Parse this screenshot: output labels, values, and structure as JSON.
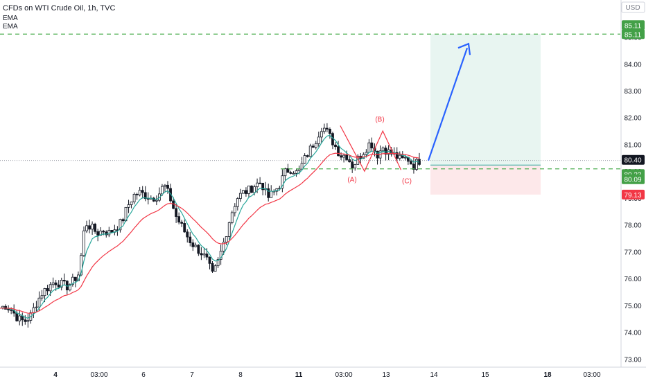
{
  "header": {
    "title": "CFDs on WTI Crude Oil, 1h, TVC",
    "ema1": "EMA",
    "ema2": "EMA",
    "currency": "USD"
  },
  "colors": {
    "up": "#26a69a",
    "down": "#ef5350",
    "candle": "#131722",
    "ema_fast": "#26a69a",
    "ema_slow": "#f23645",
    "target_line": "#4caf50",
    "arrow": "#2962ff",
    "profit_zone": "#e8f5f1",
    "loss_zone": "#fde8ea"
  },
  "chart_data": {
    "type": "candlestick",
    "ylim": [
      72.75,
      86.1
    ],
    "y_ticks": [
      73.0,
      74.0,
      75.0,
      76.0,
      77.0,
      78.0,
      79.0,
      80.0,
      81.0,
      82.0,
      83.0,
      84.0,
      85.0
    ],
    "x_ticks": [
      {
        "label": "4",
        "bold": true
      },
      {
        "label": "03:00",
        "bold": false
      },
      {
        "label": "6",
        "bold": false
      },
      {
        "label": "7",
        "bold": false
      },
      {
        "label": "8",
        "bold": false
      },
      {
        "label": "11",
        "bold": true
      },
      {
        "label": "03:00",
        "bold": false
      },
      {
        "label": "13",
        "bold": false
      },
      {
        "label": "14",
        "bold": false
      },
      {
        "label": "15",
        "bold": false
      },
      {
        "label": "18",
        "bold": true
      },
      {
        "label": "03:00",
        "bold": false
      }
    ],
    "price_path": [
      [
        0,
        74.9
      ],
      [
        1,
        75.0
      ],
      [
        2,
        74.8
      ],
      [
        3,
        74.5
      ],
      [
        4,
        74.4
      ],
      [
        5,
        74.6
      ],
      [
        6,
        75.1
      ],
      [
        7,
        75.5
      ],
      [
        8,
        75.7
      ],
      [
        9,
        75.9
      ],
      [
        10,
        75.8
      ],
      [
        11,
        75.7
      ],
      [
        12,
        75.9
      ],
      [
        13,
        76.2
      ],
      [
        14,
        78.1
      ],
      [
        15,
        77.9
      ],
      [
        16,
        77.7
      ],
      [
        17,
        77.8
      ],
      [
        18,
        77.7
      ],
      [
        19,
        77.9
      ],
      [
        20,
        78.1
      ],
      [
        21,
        78.7
      ],
      [
        22,
        79.1
      ],
      [
        23,
        79.2
      ],
      [
        24,
        79.1
      ],
      [
        25,
        79.0
      ],
      [
        26,
        79.1
      ],
      [
        27,
        79.5
      ],
      [
        28,
        79.0
      ],
      [
        29,
        78.3
      ],
      [
        30,
        77.9
      ],
      [
        31,
        77.5
      ],
      [
        32,
        77.2
      ],
      [
        33,
        77.0
      ],
      [
        34,
        76.7
      ],
      [
        35,
        76.1
      ],
      [
        36,
        76.7
      ],
      [
        37,
        77.5
      ],
      [
        38,
        78.4
      ],
      [
        39,
        79.0
      ],
      [
        40,
        79.2
      ],
      [
        41,
        79.3
      ],
      [
        42,
        79.5
      ],
      [
        43,
        79.6
      ],
      [
        44,
        79.0
      ],
      [
        45,
        79.2
      ],
      [
        46,
        79.5
      ],
      [
        47,
        80.0
      ],
      [
        48,
        80.1
      ],
      [
        49,
        79.9
      ],
      [
        50,
        80.4
      ],
      [
        51,
        80.8
      ],
      [
        52,
        81.2
      ],
      [
        53,
        81.7
      ],
      [
        54,
        81.4
      ],
      [
        55,
        81.0
      ],
      [
        56,
        80.6
      ],
      [
        57,
        80.6
      ],
      [
        58,
        80.2
      ],
      [
        59,
        80.5
      ],
      [
        60,
        80.8
      ],
      [
        61,
        81.1
      ],
      [
        62,
        80.6
      ],
      [
        63,
        80.9
      ],
      [
        64,
        80.7
      ],
      [
        65,
        80.6
      ],
      [
        66,
        80.4
      ],
      [
        67,
        80.5
      ],
      [
        68,
        80.2
      ],
      [
        69,
        80.4
      ]
    ],
    "annotations": {
      "wave_labels": [
        {
          "text": "(A)",
          "idx": 65,
          "price": 79.6
        },
        {
          "text": "(B)",
          "idx": 68,
          "price": 81.85
        },
        {
          "text": "(C)",
          "idx": 71,
          "price": 79.55
        }
      ],
      "wave_path": [
        [
          61,
          81.7
        ],
        [
          65,
          80.0
        ],
        [
          68,
          81.5
        ],
        [
          71,
          80.05
        ]
      ],
      "target_price": 85.11,
      "entry_price": 80.23,
      "stop_price": 79.13,
      "arrow_from_price": 80.4,
      "arrow_to_price": 84.75
    },
    "price_tags": [
      {
        "label": "85.11",
        "price": 85.11,
        "color": "#43a047",
        "row": 0
      },
      {
        "label": "85.11",
        "price": 85.11,
        "color": "#43a047",
        "row": 1
      },
      {
        "label": "80.40",
        "price": 80.4,
        "color": "#131722",
        "row": 0
      },
      {
        "label": "80.23",
        "price": 80.23,
        "color": "#43a047",
        "row": 1
      },
      {
        "label": "80.09",
        "price": 80.09,
        "color": "#43a047",
        "row": 2
      },
      {
        "label": "79.13",
        "price": 79.13,
        "color": "#f23645",
        "row": 0
      }
    ]
  }
}
